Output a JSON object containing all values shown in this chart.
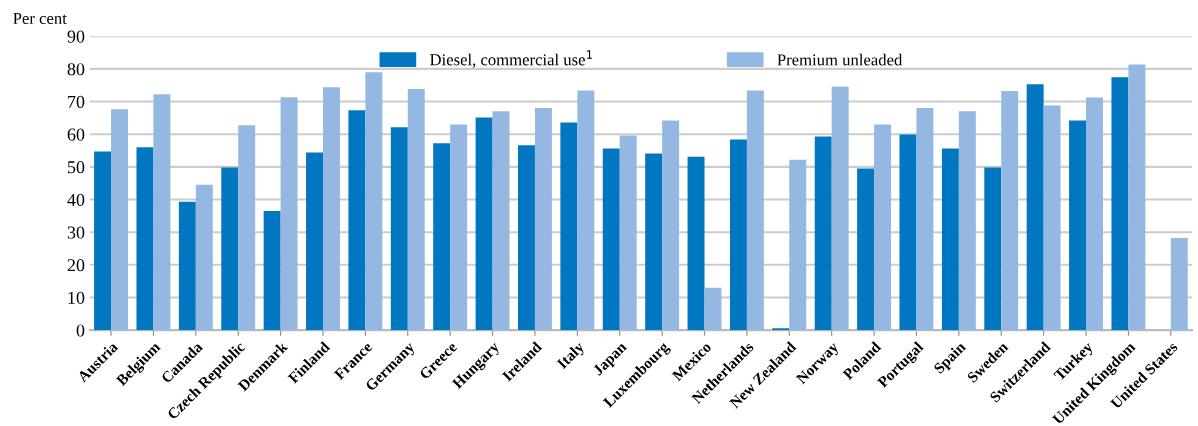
{
  "chart_data": {
    "type": "bar",
    "ylabel": "Per cent",
    "categories": [
      "Austria",
      "Belgium",
      "Canada",
      "Czech Republic",
      "Denmark",
      "Finland",
      "France",
      "Germany",
      "Greece",
      "Hungary",
      "Ireland",
      "Italy",
      "Japan",
      "Luxembourg",
      "Mexico",
      "Netherlands",
      "New Zealand",
      "Norway",
      "Poland",
      "Portugal",
      "Spain",
      "Sweden",
      "Switzerland",
      "Turkey",
      "United Kingdom",
      "United States"
    ],
    "series": [
      {
        "name": "Diesel, commercial use$^{1}$",
        "color": "#0077c0",
        "values": [
          54.7,
          56,
          39.3,
          49.8,
          36.5,
          54.4,
          67.3,
          62.1,
          57.2,
          65.1,
          56.6,
          63.6,
          55.6,
          54.1,
          53.1,
          58.4,
          0.6,
          59.3,
          49.5,
          59.9,
          55.6,
          49.8,
          75.3,
          64.2,
          77.4,
          null
        ]
      },
      {
        "name": "Premium unleaded",
        "color": "#94b8e2",
        "values": [
          67.6,
          72.2,
          44.5,
          62.7,
          71.3,
          74.4,
          79.0,
          73.8,
          63.0,
          67.0,
          68.0,
          73.4,
          59.6,
          64.2,
          13.0,
          73.4,
          52.2,
          74.6,
          63.0,
          68.0,
          67.0,
          73.2,
          68.8,
          71.2,
          81.3,
          28.2
        ]
      }
    ],
    "ylim": [
      0,
      90
    ],
    "yticks": [
      0,
      10,
      20,
      30,
      40,
      50,
      60,
      70,
      80,
      90
    ],
    "grid": "y",
    "legend": "top"
  }
}
